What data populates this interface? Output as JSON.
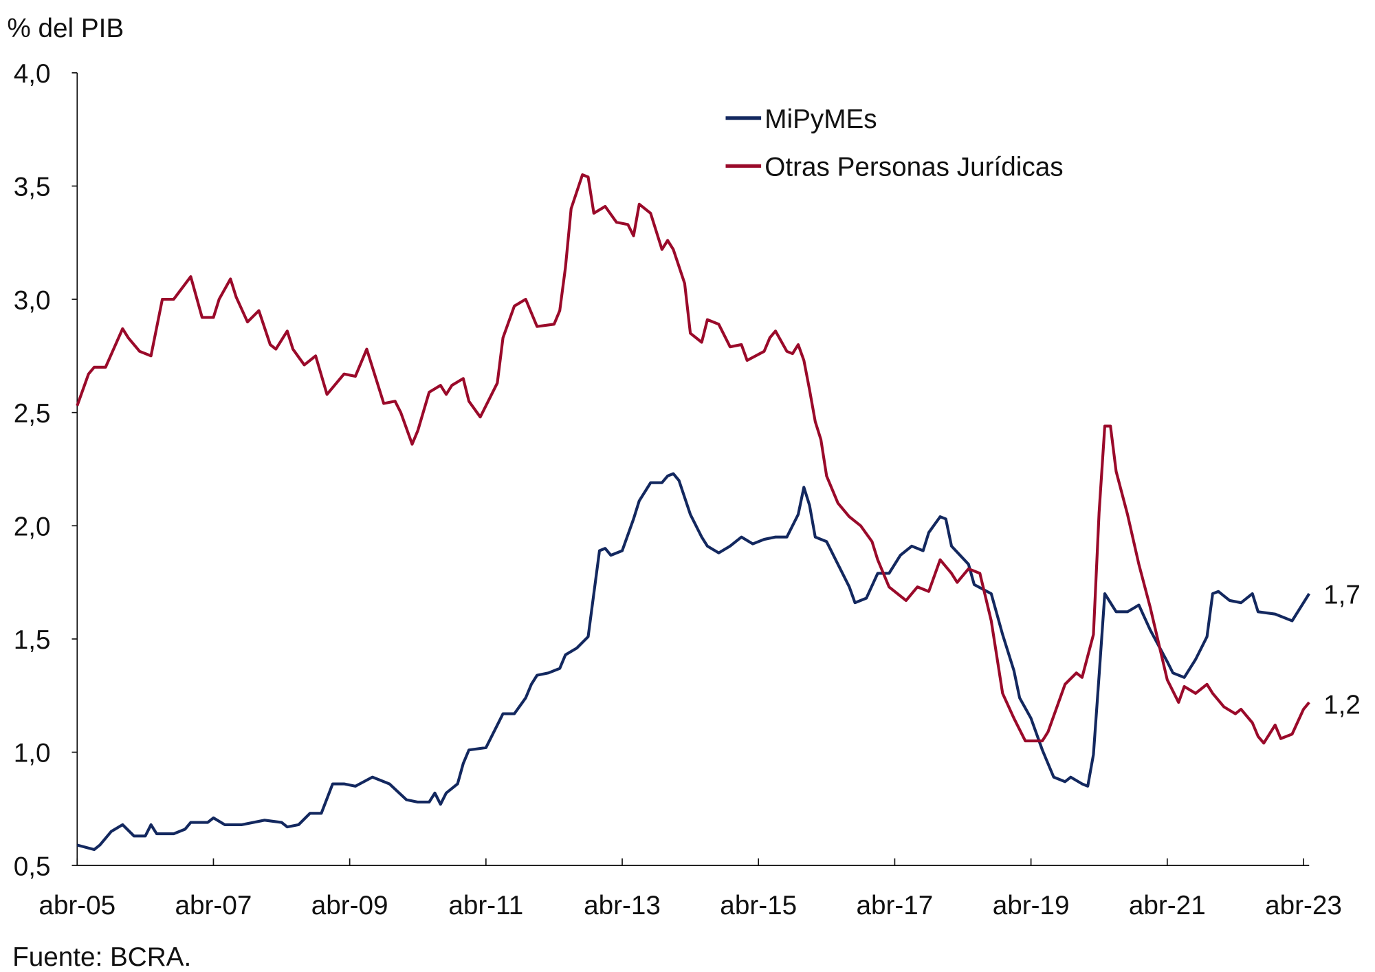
{
  "chart_data": {
    "type": "line",
    "ylabel": "% del PIB",
    "source": "Fuente: BCRA.",
    "x_unit": "months since abr-05",
    "xlim": [
      0,
      217
    ],
    "ylim": [
      0.5,
      4.0
    ],
    "yticks": [
      0.5,
      1.0,
      1.5,
      2.0,
      2.5,
      3.0,
      3.5,
      4.0
    ],
    "ytick_labels": [
      "0,5",
      "1,0",
      "1,5",
      "2,0",
      "2,5",
      "3,0",
      "3,5",
      "4,0"
    ],
    "xticks": [
      0,
      24,
      48,
      72,
      96,
      120,
      144,
      168,
      192,
      216
    ],
    "xtick_labels": [
      "abr-05",
      "abr-07",
      "abr-09",
      "abr-11",
      "abr-13",
      "abr-15",
      "abr-17",
      "abr-19",
      "abr-21",
      "abr-23"
    ],
    "legend_position": "top-right",
    "series": [
      {
        "name": "MiPyMEs",
        "color": "#13285f",
        "end_label": "1,7",
        "points": [
          [
            0,
            0.59
          ],
          [
            3,
            0.57
          ],
          [
            4,
            0.59
          ],
          [
            6,
            0.65
          ],
          [
            8,
            0.68
          ],
          [
            10,
            0.63
          ],
          [
            12,
            0.63
          ],
          [
            13,
            0.68
          ],
          [
            14,
            0.64
          ],
          [
            15,
            0.64
          ],
          [
            17,
            0.64
          ],
          [
            19,
            0.66
          ],
          [
            20,
            0.69
          ],
          [
            23,
            0.69
          ],
          [
            24,
            0.71
          ],
          [
            26,
            0.68
          ],
          [
            29,
            0.68
          ],
          [
            33,
            0.7
          ],
          [
            36,
            0.69
          ],
          [
            37,
            0.67
          ],
          [
            39,
            0.68
          ],
          [
            41,
            0.73
          ],
          [
            43,
            0.73
          ],
          [
            45,
            0.86
          ],
          [
            47,
            0.86
          ],
          [
            49,
            0.85
          ],
          [
            52,
            0.89
          ],
          [
            53,
            0.88
          ],
          [
            55,
            0.86
          ],
          [
            58,
            0.79
          ],
          [
            60,
            0.78
          ],
          [
            62,
            0.78
          ],
          [
            63,
            0.82
          ],
          [
            64,
            0.77
          ],
          [
            65,
            0.82
          ],
          [
            67,
            0.86
          ],
          [
            68,
            0.95
          ],
          [
            69,
            1.01
          ],
          [
            72,
            1.02
          ],
          [
            75,
            1.17
          ],
          [
            77,
            1.17
          ],
          [
            79,
            1.24
          ],
          [
            80,
            1.3
          ],
          [
            81,
            1.34
          ],
          [
            83,
            1.35
          ],
          [
            85,
            1.37
          ],
          [
            86,
            1.43
          ],
          [
            88,
            1.46
          ],
          [
            90,
            1.51
          ],
          [
            91,
            1.7
          ],
          [
            92,
            1.89
          ],
          [
            93,
            1.9
          ],
          [
            94,
            1.87
          ],
          [
            96,
            1.89
          ],
          [
            98,
            2.03
          ],
          [
            99,
            2.11
          ],
          [
            101,
            2.19
          ],
          [
            103,
            2.19
          ],
          [
            104,
            2.22
          ],
          [
            105,
            2.23
          ],
          [
            106,
            2.2
          ],
          [
            108,
            2.05
          ],
          [
            110,
            1.95
          ],
          [
            111,
            1.91
          ],
          [
            113,
            1.88
          ],
          [
            115,
            1.91
          ],
          [
            117,
            1.95
          ],
          [
            119,
            1.92
          ],
          [
            121,
            1.94
          ],
          [
            123,
            1.95
          ],
          [
            124,
            1.95
          ],
          [
            125,
            1.95
          ],
          [
            127,
            2.05
          ],
          [
            128,
            2.17
          ],
          [
            129,
            2.09
          ],
          [
            130,
            1.95
          ],
          [
            132,
            1.93
          ],
          [
            134,
            1.83
          ],
          [
            136,
            1.73
          ],
          [
            137,
            1.66
          ],
          [
            139,
            1.68
          ],
          [
            141,
            1.79
          ],
          [
            143,
            1.79
          ],
          [
            145,
            1.87
          ],
          [
            147,
            1.91
          ],
          [
            149,
            1.89
          ],
          [
            150,
            1.97
          ],
          [
            152,
            2.04
          ],
          [
            153,
            2.03
          ],
          [
            154,
            1.91
          ],
          [
            157,
            1.83
          ],
          [
            158,
            1.74
          ],
          [
            161,
            1.7
          ],
          [
            163,
            1.52
          ],
          [
            165,
            1.36
          ],
          [
            166,
            1.24
          ],
          [
            168,
            1.15
          ],
          [
            170,
            1.01
          ],
          [
            172,
            0.89
          ],
          [
            174,
            0.87
          ],
          [
            175,
            0.89
          ],
          [
            177,
            0.86
          ],
          [
            178,
            0.85
          ],
          [
            179,
            0.99
          ],
          [
            180,
            1.34
          ],
          [
            181,
            1.7
          ],
          [
            183,
            1.62
          ],
          [
            185,
            1.62
          ],
          [
            187,
            1.65
          ],
          [
            189,
            1.54
          ],
          [
            192,
            1.4
          ],
          [
            193,
            1.35
          ],
          [
            195,
            1.33
          ],
          [
            197,
            1.41
          ],
          [
            199,
            1.51
          ],
          [
            200,
            1.7
          ],
          [
            201,
            1.71
          ],
          [
            203,
            1.67
          ],
          [
            205,
            1.66
          ],
          [
            207,
            1.7
          ],
          [
            208,
            1.62
          ],
          [
            211,
            1.61
          ],
          [
            212,
            1.6
          ],
          [
            214,
            1.58
          ],
          [
            215,
            1.62
          ],
          [
            217,
            1.7
          ]
        ]
      },
      {
        "name": "Otras Personas Jurídicas",
        "color": "#9a0a2a",
        "end_label": "1,2",
        "points": [
          [
            0,
            2.53
          ],
          [
            2,
            2.67
          ],
          [
            3,
            2.7
          ],
          [
            5,
            2.7
          ],
          [
            8,
            2.87
          ],
          [
            9,
            2.83
          ],
          [
            11,
            2.77
          ],
          [
            13,
            2.75
          ],
          [
            15,
            3.0
          ],
          [
            17,
            3.0
          ],
          [
            20,
            3.1
          ],
          [
            22,
            2.92
          ],
          [
            24,
            2.92
          ],
          [
            25,
            3.0
          ],
          [
            27,
            3.09
          ],
          [
            28,
            3.01
          ],
          [
            30,
            2.9
          ],
          [
            32,
            2.95
          ],
          [
            34,
            2.8
          ],
          [
            35,
            2.78
          ],
          [
            37,
            2.86
          ],
          [
            38,
            2.78
          ],
          [
            40,
            2.71
          ],
          [
            42,
            2.75
          ],
          [
            44,
            2.58
          ],
          [
            47,
            2.67
          ],
          [
            49,
            2.66
          ],
          [
            51,
            2.78
          ],
          [
            54,
            2.54
          ],
          [
            56,
            2.55
          ],
          [
            57,
            2.5
          ],
          [
            59,
            2.36
          ],
          [
            60,
            2.42
          ],
          [
            62,
            2.59
          ],
          [
            64,
            2.62
          ],
          [
            65,
            2.58
          ],
          [
            66,
            2.62
          ],
          [
            68,
            2.65
          ],
          [
            69,
            2.55
          ],
          [
            71,
            2.48
          ],
          [
            73,
            2.58
          ],
          [
            74,
            2.63
          ],
          [
            75,
            2.83
          ],
          [
            77,
            2.97
          ],
          [
            79,
            3.0
          ],
          [
            81,
            2.88
          ],
          [
            84,
            2.89
          ],
          [
            85,
            2.95
          ],
          [
            86,
            3.14
          ],
          [
            87,
            3.4
          ],
          [
            89,
            3.55
          ],
          [
            90,
            3.54
          ],
          [
            91,
            3.38
          ],
          [
            93,
            3.41
          ],
          [
            95,
            3.34
          ],
          [
            97,
            3.33
          ],
          [
            98,
            3.28
          ],
          [
            99,
            3.42
          ],
          [
            101,
            3.38
          ],
          [
            103,
            3.22
          ],
          [
            104,
            3.26
          ],
          [
            105,
            3.22
          ],
          [
            107,
            3.07
          ],
          [
            108,
            2.85
          ],
          [
            110,
            2.81
          ],
          [
            111,
            2.91
          ],
          [
            113,
            2.89
          ],
          [
            115,
            2.79
          ],
          [
            117,
            2.8
          ],
          [
            118,
            2.73
          ],
          [
            121,
            2.77
          ],
          [
            122,
            2.83
          ],
          [
            123,
            2.86
          ],
          [
            125,
            2.77
          ],
          [
            126,
            2.76
          ],
          [
            127,
            2.8
          ],
          [
            128,
            2.73
          ],
          [
            129,
            2.6
          ],
          [
            130,
            2.46
          ],
          [
            131,
            2.38
          ],
          [
            132,
            2.22
          ],
          [
            134,
            2.1
          ],
          [
            136,
            2.04
          ],
          [
            138,
            2.0
          ],
          [
            140,
            1.93
          ],
          [
            141,
            1.85
          ],
          [
            143,
            1.73
          ],
          [
            146,
            1.67
          ],
          [
            148,
            1.73
          ],
          [
            150,
            1.71
          ],
          [
            152,
            1.85
          ],
          [
            154,
            1.79
          ],
          [
            155,
            1.75
          ],
          [
            157,
            1.81
          ],
          [
            159,
            1.79
          ],
          [
            161,
            1.58
          ],
          [
            163,
            1.26
          ],
          [
            165,
            1.15
          ],
          [
            167,
            1.05
          ],
          [
            170,
            1.05
          ],
          [
            171,
            1.09
          ],
          [
            174,
            1.3
          ],
          [
            176,
            1.35
          ],
          [
            177,
            1.33
          ],
          [
            179,
            1.52
          ],
          [
            180,
            2.06
          ],
          [
            181,
            2.44
          ],
          [
            182,
            2.44
          ],
          [
            183,
            2.24
          ],
          [
            185,
            2.05
          ],
          [
            187,
            1.83
          ],
          [
            189,
            1.64
          ],
          [
            192,
            1.32
          ],
          [
            194,
            1.22
          ],
          [
            195,
            1.29
          ],
          [
            197,
            1.26
          ],
          [
            199,
            1.3
          ],
          [
            200,
            1.26
          ],
          [
            202,
            1.2
          ],
          [
            204,
            1.17
          ],
          [
            205,
            1.19
          ],
          [
            207,
            1.13
          ],
          [
            208,
            1.07
          ],
          [
            209,
            1.04
          ],
          [
            211,
            1.12
          ],
          [
            212,
            1.06
          ],
          [
            214,
            1.08
          ],
          [
            216,
            1.19
          ],
          [
            217,
            1.22
          ]
        ]
      }
    ]
  }
}
